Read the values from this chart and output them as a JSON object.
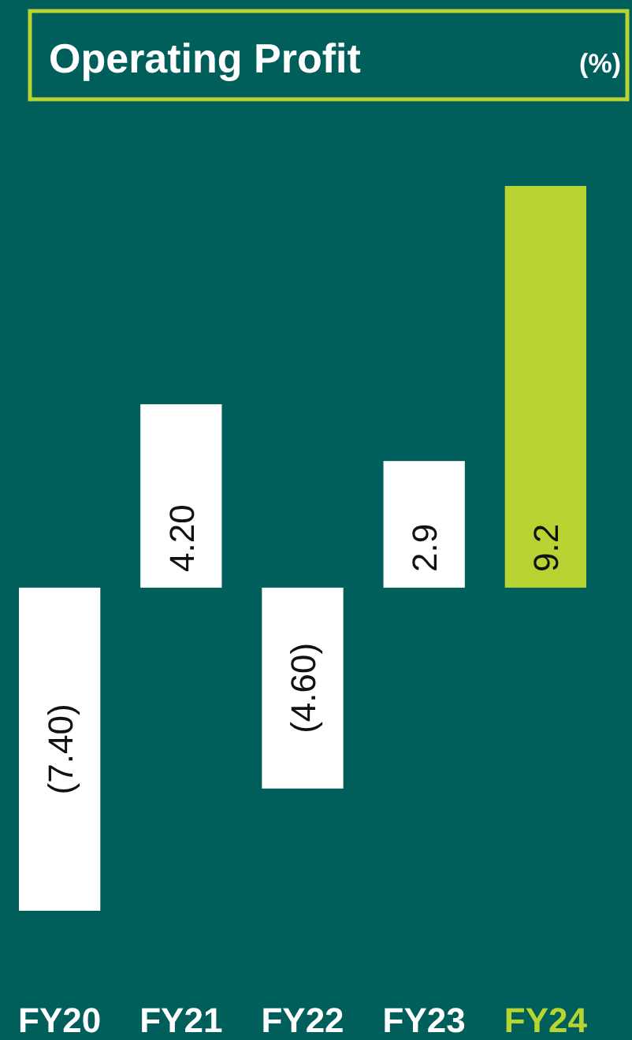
{
  "chart_data": {
    "type": "bar",
    "title": "Operating Profit",
    "subtitle": "(%)",
    "categories": [
      "FY20",
      "FY21",
      "FY22",
      "FY23",
      "FY24"
    ],
    "values": [
      -7.4,
      4.2,
      -4.6,
      2.9,
      9.2
    ],
    "colors": [
      "#ffffff",
      "#ffffff",
      "#ffffff",
      "#ffffff",
      "#b8d433"
    ],
    "value_labels": [
      "(7.40)",
      "4.20",
      "(4.60)",
      "2.9",
      "9.2"
    ]
  }
}
